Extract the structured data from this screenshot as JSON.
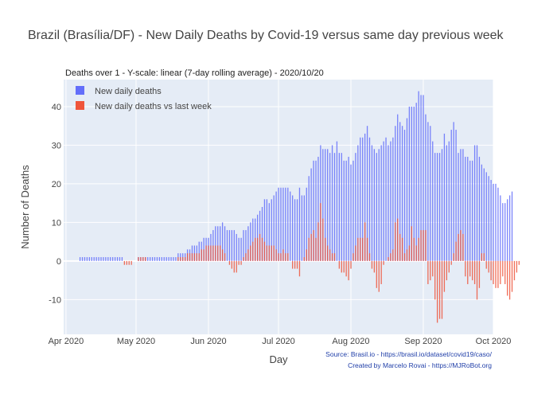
{
  "title": "Brazil (Brasília/DF) - New Daily Deaths by Covid-19 versus same day previous week",
  "subtitle": "Deaths over 1 - Y-scale: linear (7-day rolling average) - 2020/10/20",
  "source_line1": "Source: Brasil.io - https://brasil.io/dataset/covid19/caso/",
  "source_line2": "Created by Marcelo Rovai - https://MJRoBot.org",
  "colors": {
    "plot_bg": "#e5ecf6",
    "grid": "#ffffff",
    "series_new": "#636efa",
    "series_diff": "#ef553b",
    "text": "#444444"
  },
  "chart_data": {
    "type": "bar",
    "barmode": "overlay",
    "xlabel": "Day",
    "ylabel": "Number of Deaths",
    "xlim": [
      "2020-03-31",
      "2020-10-01"
    ],
    "ylim": [
      -19,
      47
    ],
    "yticks": [
      -10,
      0,
      10,
      20,
      30,
      40
    ],
    "xticks": [
      {
        "date": "2020-04-01",
        "label": "Apr 2020"
      },
      {
        "date": "2020-05-01",
        "label": "May 2020"
      },
      {
        "date": "2020-06-01",
        "label": "Jun 2020"
      },
      {
        "date": "2020-07-01",
        "label": "Jul 2020"
      },
      {
        "date": "2020-08-01",
        "label": "Aug 2020"
      },
      {
        "date": "2020-09-01",
        "label": "Sep 2020"
      },
      {
        "date": "2020-10-01",
        "label": "Oct 2020"
      }
    ],
    "legend_position": "top-left",
    "start_date": "2020-04-07",
    "series": [
      {
        "name": "New daily deaths",
        "values": [
          1,
          1,
          1,
          1,
          1,
          1,
          1,
          1,
          1,
          1,
          1,
          1,
          1,
          1,
          1,
          1,
          1,
          1,
          1,
          0,
          0,
          0,
          0,
          0,
          0,
          1,
          1,
          1,
          1,
          1,
          1,
          1,
          1,
          1,
          1,
          1,
          1,
          1,
          1,
          1,
          1,
          1,
          2,
          2,
          2,
          2,
          3,
          3,
          4,
          4,
          4,
          5,
          5,
          6,
          6,
          6,
          7,
          8,
          9,
          9,
          9,
          10,
          9,
          8,
          8,
          8,
          8,
          7,
          6,
          6,
          8,
          8,
          9,
          10,
          11,
          11,
          12,
          13,
          14,
          16,
          16,
          15,
          16,
          17,
          18,
          19,
          19,
          19,
          19,
          19,
          18,
          17,
          16,
          16,
          19,
          17,
          17,
          19,
          22,
          24,
          26,
          26,
          27,
          30,
          29,
          29,
          29,
          28,
          30,
          28,
          31,
          28,
          28,
          26,
          26,
          27,
          25,
          26,
          28,
          30,
          32,
          32,
          33,
          35,
          32,
          30,
          29,
          28,
          29,
          30,
          31,
          32,
          30,
          31,
          32,
          35,
          38,
          36,
          35,
          34,
          37,
          40,
          40,
          40,
          41,
          44,
          43,
          43,
          38,
          36,
          35,
          31,
          28,
          28,
          28,
          29,
          33,
          30,
          31,
          34,
          36,
          34,
          28,
          29,
          29,
          27,
          27,
          26,
          26,
          30,
          30,
          27,
          25,
          24,
          23,
          22,
          21,
          20,
          20,
          19,
          17,
          15,
          15,
          16,
          17,
          18
        ]
      },
      {
        "name": "New daily deaths vs last week",
        "values": [
          0,
          0,
          0,
          0,
          0,
          0,
          0,
          0,
          0,
          0,
          0,
          0,
          0,
          0,
          0,
          0,
          0,
          0,
          0,
          -1,
          -1,
          -1,
          -1,
          0,
          0,
          1,
          1,
          1,
          1,
          0,
          0,
          0,
          0,
          0,
          0,
          0,
          0,
          0,
          0,
          0,
          0,
          0,
          1,
          1,
          1,
          1,
          2,
          2,
          2,
          2,
          2,
          2,
          3,
          3,
          4,
          4,
          4,
          4,
          4,
          4,
          4,
          3,
          2,
          0,
          -1,
          -2,
          -3,
          -3,
          -1,
          -1,
          1,
          2,
          3,
          4,
          5,
          6,
          6,
          7,
          6,
          5,
          4,
          4,
          4,
          4,
          3,
          2,
          2,
          3,
          2,
          2,
          0,
          -2,
          -2,
          -2,
          -4,
          0,
          1,
          3,
          6,
          7,
          8,
          6,
          10,
          15,
          11,
          6,
          4,
          3,
          2,
          2,
          0,
          -2,
          -3,
          -3,
          -4,
          -5,
          -2,
          2,
          4,
          6,
          6,
          6,
          10,
          6,
          2,
          -2,
          -3,
          -7,
          -8,
          -6,
          -1,
          0,
          1,
          2,
          3,
          10,
          11,
          7,
          6,
          2,
          3,
          4,
          9,
          6,
          4,
          6,
          8,
          8,
          8,
          -6,
          -5,
          -4,
          -10,
          -16,
          -15,
          -15,
          -8,
          -5,
          -3,
          -1,
          2,
          5,
          7,
          8,
          7,
          -4,
          -6,
          -4,
          -5,
          -6,
          -10,
          -7,
          2,
          2,
          -2,
          -3,
          -5,
          -6,
          -7,
          -7,
          -6,
          -4,
          -6,
          -9,
          -10,
          -8,
          -5,
          -3,
          -1
        ]
      }
    ]
  }
}
